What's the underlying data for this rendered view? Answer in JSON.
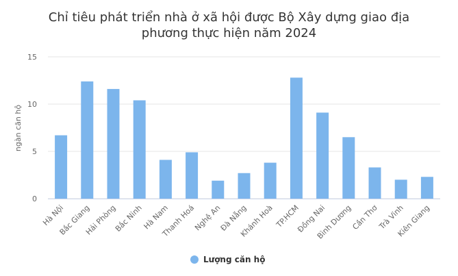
{
  "chart_data": {
    "type": "bar",
    "title": "Chỉ tiêu phát triển nhà ở xã hội được Bộ Xây dựng giao địa phương thực hiện năm 2024",
    "y_label": "ngàn căn hộ",
    "categories": [
      "Hà Nội",
      "Bắc Giang",
      "Hải Phòng",
      "Bắc Ninh",
      "Hà Nam",
      "Thanh Hoá",
      "Nghệ An",
      "Đà Nẵng",
      "Khánh Hoà",
      "TP.HCM",
      "Đồng Nai",
      "Bình Dương",
      "Cần Thơ",
      "Trà Vinh",
      "Kiên Giang"
    ],
    "series": [
      {
        "name": "Lượng căn hộ",
        "color": "#7cb5ec",
        "values": [
          6.7,
          12.4,
          11.6,
          10.4,
          4.1,
          4.9,
          1.9,
          2.7,
          3.8,
          12.8,
          9.1,
          6.5,
          3.3,
          2.0,
          2.3
        ]
      }
    ],
    "ylim": [
      0,
      15
    ],
    "yticks": [
      0,
      5,
      10,
      15
    ],
    "grid": true,
    "legend": "bottom"
  }
}
